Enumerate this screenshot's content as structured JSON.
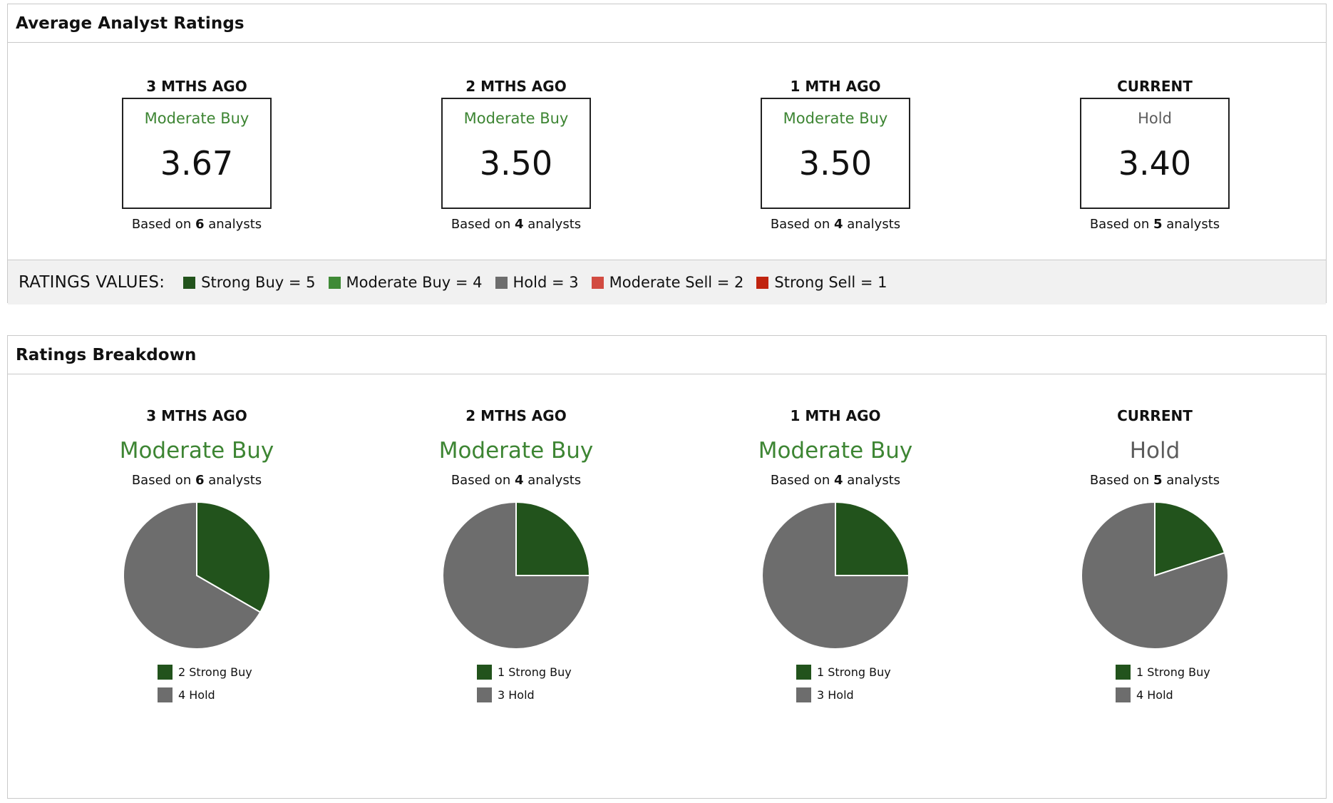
{
  "colors": {
    "strong_buy": "#22531c",
    "moderate_buy": "#3f8a36",
    "hold": "#6d6d6d",
    "moderate_sell": "#d24b41",
    "strong_sell": "#c0240f",
    "green_text": "#3d8533",
    "hold_text": "#5c5c5c"
  },
  "average_panel": {
    "title": "Average Analyst Ratings",
    "columns": [
      {
        "period": "3 MTHS AGO",
        "rating": "Moderate Buy",
        "rating_color": "#3d8533",
        "score": "3.67",
        "based_prefix": "Based on ",
        "analysts": "6",
        "based_suffix": " analysts"
      },
      {
        "period": "2 MTHS AGO",
        "rating": "Moderate Buy",
        "rating_color": "#3d8533",
        "score": "3.50",
        "based_prefix": "Based on ",
        "analysts": "4",
        "based_suffix": " analysts"
      },
      {
        "period": "1 MTH AGO",
        "rating": "Moderate Buy",
        "rating_color": "#3d8533",
        "score": "3.50",
        "based_prefix": "Based on ",
        "analysts": "4",
        "based_suffix": " analysts"
      },
      {
        "period": "CURRENT",
        "rating": "Hold",
        "rating_color": "#5c5c5c",
        "score": "3.40",
        "based_prefix": "Based on ",
        "analysts": "5",
        "based_suffix": " analysts"
      }
    ],
    "legend": {
      "title": "RATINGS VALUES:",
      "items": [
        {
          "label": "Strong Buy = 5",
          "color": "#22531c"
        },
        {
          "label": "Moderate Buy = 4",
          "color": "#3f8a36"
        },
        {
          "label": "Hold = 3",
          "color": "#6d6d6d"
        },
        {
          "label": "Moderate Sell = 2",
          "color": "#d24b41"
        },
        {
          "label": "Strong Sell = 1",
          "color": "#c0240f"
        }
      ]
    }
  },
  "breakdown_panel": {
    "title": "Ratings Breakdown",
    "columns": [
      {
        "period": "3 MTHS AGO",
        "rating": "Moderate Buy",
        "rating_color": "#3d8533",
        "based_prefix": "Based on ",
        "analysts": "6",
        "based_suffix": " analysts",
        "legend": [
          {
            "label": "2 Strong Buy",
            "color": "#22531c"
          },
          {
            "label": "4 Hold",
            "color": "#6d6d6d"
          }
        ]
      },
      {
        "period": "2 MTHS AGO",
        "rating": "Moderate Buy",
        "rating_color": "#3d8533",
        "based_prefix": "Based on ",
        "analysts": "4",
        "based_suffix": " analysts",
        "legend": [
          {
            "label": "1 Strong Buy",
            "color": "#22531c"
          },
          {
            "label": "3 Hold",
            "color": "#6d6d6d"
          }
        ]
      },
      {
        "period": "1 MTH AGO",
        "rating": "Moderate Buy",
        "rating_color": "#3d8533",
        "based_prefix": "Based on ",
        "analysts": "4",
        "based_suffix": " analysts",
        "legend": [
          {
            "label": "1 Strong Buy",
            "color": "#22531c"
          },
          {
            "label": "3 Hold",
            "color": "#6d6d6d"
          }
        ]
      },
      {
        "period": "CURRENT",
        "rating": "Hold",
        "rating_color": "#5c5c5c",
        "based_prefix": "Based on ",
        "analysts": "5",
        "based_suffix": " analysts",
        "legend": [
          {
            "label": "1 Strong Buy",
            "color": "#22531c"
          },
          {
            "label": "4 Hold",
            "color": "#6d6d6d"
          }
        ]
      }
    ]
  },
  "chart_data": [
    {
      "type": "pie",
      "categories": [
        "Strong Buy",
        "Hold"
      ],
      "values": [
        2,
        4
      ],
      "colors": [
        "#22531c",
        "#6d6d6d"
      ]
    },
    {
      "type": "pie",
      "categories": [
        "Strong Buy",
        "Hold"
      ],
      "values": [
        1,
        3
      ],
      "colors": [
        "#22531c",
        "#6d6d6d"
      ]
    },
    {
      "type": "pie",
      "categories": [
        "Strong Buy",
        "Hold"
      ],
      "values": [
        1,
        3
      ],
      "colors": [
        "#22531c",
        "#6d6d6d"
      ]
    },
    {
      "type": "pie",
      "categories": [
        "Strong Buy",
        "Hold"
      ],
      "values": [
        1,
        4
      ],
      "colors": [
        "#22531c",
        "#6d6d6d"
      ]
    }
  ]
}
